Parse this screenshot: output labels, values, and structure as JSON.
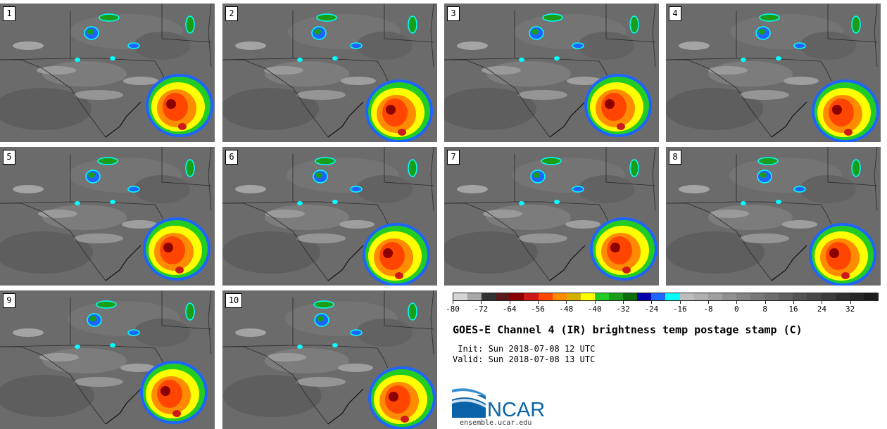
{
  "title": "GOES-E Channel 4 (IR) brightness temp postage stamp (C)",
  "init_line": " Init: Sun 2018-07-08 12 UTC",
  "valid_line": "Valid: Sun 2018-07-08 13 UTC",
  "website": "ensemble.ucar.edu",
  "logo_text": "NCAR",
  "panels": [
    "1",
    "2",
    "3",
    "4",
    "5",
    "6",
    "7",
    "8",
    "9",
    "10"
  ],
  "colorbar": {
    "tick_labels": [
      "-80",
      "-72",
      "-64",
      "-56",
      "-48",
      "-40",
      "-32",
      "-24",
      "-16",
      "-8",
      "0",
      "8",
      "16",
      "24",
      "32"
    ],
    "range": [
      -80,
      40
    ],
    "colors": [
      "#d4d4d4",
      "#a8a8a8",
      "#333333",
      "#5a1a1a",
      "#8b0000",
      "#cc1a1a",
      "#ff4500",
      "#ff8c00",
      "#d4b000",
      "#ffff00",
      "#22cc22",
      "#1a9e1a",
      "#0a6e0a",
      "#0000aa",
      "#1e64ff",
      "#00ffff",
      "#bdbdbd",
      "#b0b0b0",
      "#a0a0a0",
      "#909090",
      "#848484",
      "#787878",
      "#6c6c6c",
      "#606060",
      "#545454",
      "#484848",
      "#3c3c3c",
      "#303030",
      "#262626",
      "#1c1c1c"
    ]
  }
}
